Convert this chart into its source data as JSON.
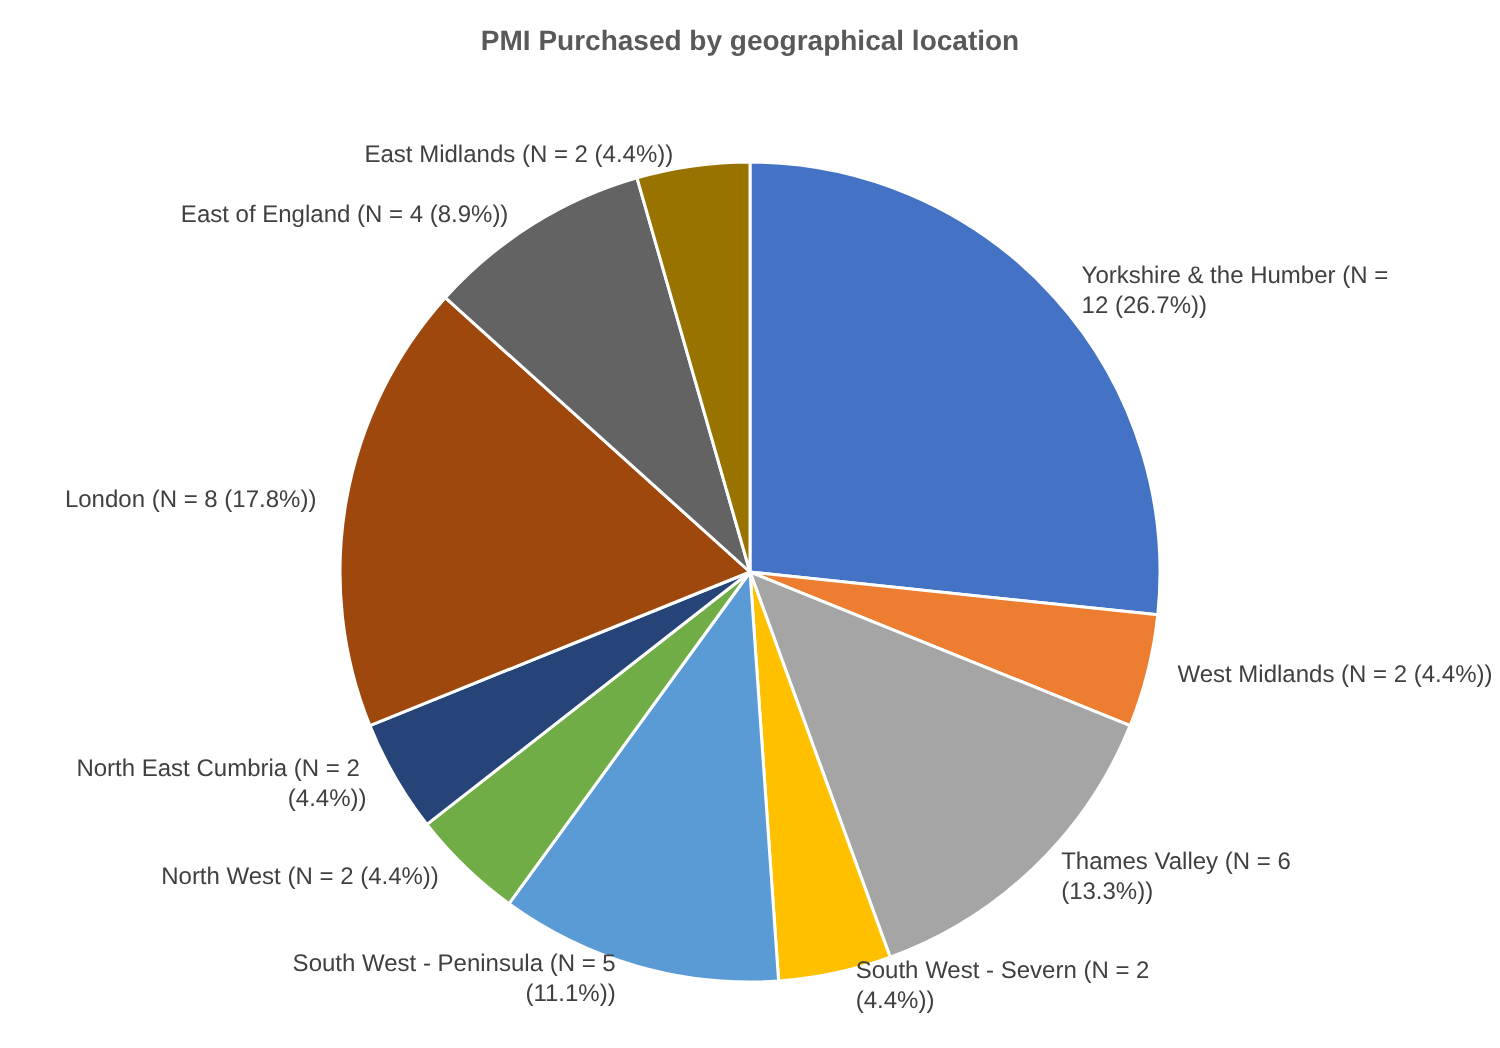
{
  "chart_data": {
    "type": "pie",
    "title": "PMI Purchased by geographical location",
    "categories": [
      "Yorkshire & the Humber",
      "West Midlands",
      "Thames Valley",
      "South West - Severn",
      "South West - Peninsula",
      "North West",
      "North East Cumbria",
      "London",
      "East of England",
      "East Midlands"
    ],
    "values": [
      12,
      2,
      6,
      2,
      5,
      2,
      2,
      8,
      4,
      2
    ],
    "value_labels": [
      "(N = 12 (26.7%))",
      "(N = 2 (4.4%))",
      "(N = 6 (13.3%))",
      "(N = 2 (4.4%))",
      "(N = 5 (11.1%))",
      "(N = 2 (4.4%))",
      "(N = 2 (4.4%))",
      "(N = 8 (17.8%))",
      "(N = 4 (8.9%))",
      "(N = 2 (4.4%))"
    ],
    "colors": [
      "#4472c4",
      "#ed7d31",
      "#a5a5a5",
      "#ffc000",
      "#5b9bd5",
      "#70ad47",
      "#264478",
      "#9e480e",
      "#636363",
      "#997300"
    ],
    "legend": false
  }
}
